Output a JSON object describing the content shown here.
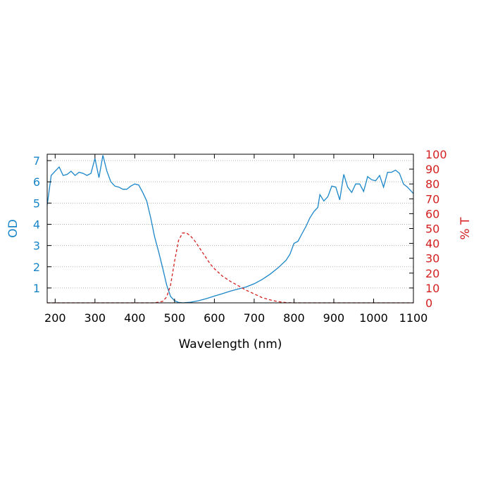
{
  "chart_data": {
    "type": "line",
    "xlabel": "Wavelength (nm)",
    "ylabel_left": "OD",
    "ylabel_right": "% T",
    "xlim": [
      180,
      1100
    ],
    "ylim_left": [
      0.3,
      7.3
    ],
    "ylim_right": [
      0,
      100
    ],
    "x_ticks": [
      200,
      300,
      400,
      500,
      600,
      700,
      800,
      900,
      1000,
      1100
    ],
    "y_left_ticks": [
      1,
      2,
      3,
      4,
      5,
      6,
      7
    ],
    "y_right_ticks": [
      0,
      10,
      20,
      30,
      40,
      50,
      60,
      70,
      80,
      90,
      100
    ],
    "grid": "horizontal dotted",
    "colors": {
      "od": "#1a86c8",
      "transmission": "#d42020",
      "grid": "#b0b0b0",
      "frame": "#000000"
    },
    "series": [
      {
        "axis": "left",
        "style": "solid",
        "points": [
          [
            180,
            4.9
          ],
          [
            190,
            6.3
          ],
          [
            200,
            6.5
          ],
          [
            210,
            6.7
          ],
          [
            220,
            6.3
          ],
          [
            230,
            6.35
          ],
          [
            240,
            6.5
          ],
          [
            250,
            6.3
          ],
          [
            260,
            6.45
          ],
          [
            270,
            6.4
          ],
          [
            280,
            6.3
          ],
          [
            290,
            6.4
          ],
          [
            300,
            7.1
          ],
          [
            310,
            6.2
          ],
          [
            320,
            7.25
          ],
          [
            330,
            6.5
          ],
          [
            340,
            6.0
          ],
          [
            350,
            5.8
          ],
          [
            360,
            5.75
          ],
          [
            370,
            5.65
          ],
          [
            380,
            5.65
          ],
          [
            390,
            5.8
          ],
          [
            400,
            5.9
          ],
          [
            410,
            5.85
          ],
          [
            420,
            5.5
          ],
          [
            430,
            5.1
          ],
          [
            440,
            4.3
          ],
          [
            450,
            3.4
          ],
          [
            460,
            2.7
          ],
          [
            470,
            1.95
          ],
          [
            480,
            1.15
          ],
          [
            490,
            0.6
          ],
          [
            500,
            0.4
          ],
          [
            510,
            0.32
          ],
          [
            520,
            0.3
          ],
          [
            540,
            0.33
          ],
          [
            560,
            0.4
          ],
          [
            580,
            0.5
          ],
          [
            600,
            0.62
          ],
          [
            620,
            0.73
          ],
          [
            640,
            0.85
          ],
          [
            660,
            0.95
          ],
          [
            680,
            1.05
          ],
          [
            700,
            1.2
          ],
          [
            720,
            1.4
          ],
          [
            740,
            1.65
          ],
          [
            760,
            1.95
          ],
          [
            780,
            2.3
          ],
          [
            790,
            2.6
          ],
          [
            800,
            3.1
          ],
          [
            810,
            3.2
          ],
          [
            820,
            3.55
          ],
          [
            830,
            3.9
          ],
          [
            840,
            4.3
          ],
          [
            850,
            4.6
          ],
          [
            860,
            4.8
          ],
          [
            865,
            5.4
          ],
          [
            875,
            5.1
          ],
          [
            885,
            5.3
          ],
          [
            895,
            5.8
          ],
          [
            905,
            5.75
          ],
          [
            915,
            5.15
          ],
          [
            925,
            6.35
          ],
          [
            935,
            5.75
          ],
          [
            945,
            5.5
          ],
          [
            955,
            5.9
          ],
          [
            965,
            5.9
          ],
          [
            975,
            5.55
          ],
          [
            985,
            6.25
          ],
          [
            995,
            6.1
          ],
          [
            1005,
            6.05
          ],
          [
            1015,
            6.3
          ],
          [
            1025,
            5.75
          ],
          [
            1035,
            6.45
          ],
          [
            1045,
            6.45
          ],
          [
            1055,
            6.55
          ],
          [
            1065,
            6.4
          ],
          [
            1075,
            5.9
          ],
          [
            1085,
            5.75
          ],
          [
            1095,
            5.55
          ],
          [
            1100,
            5.45
          ]
        ]
      },
      {
        "axis": "right",
        "style": "dashed",
        "points": [
          [
            180,
            0
          ],
          [
            450,
            0
          ],
          [
            470,
            1
          ],
          [
            480,
            4
          ],
          [
            490,
            12
          ],
          [
            500,
            28
          ],
          [
            510,
            42
          ],
          [
            520,
            47
          ],
          [
            530,
            47
          ],
          [
            540,
            45
          ],
          [
            550,
            42
          ],
          [
            560,
            38
          ],
          [
            570,
            34
          ],
          [
            580,
            30
          ],
          [
            590,
            26
          ],
          [
            600,
            23
          ],
          [
            620,
            18
          ],
          [
            640,
            14.5
          ],
          [
            660,
            11.5
          ],
          [
            680,
            8.5
          ],
          [
            700,
            6
          ],
          [
            720,
            3.5
          ],
          [
            740,
            2
          ],
          [
            760,
            0.8
          ],
          [
            780,
            0.2
          ],
          [
            800,
            0
          ],
          [
            1100,
            0
          ]
        ]
      }
    ]
  }
}
